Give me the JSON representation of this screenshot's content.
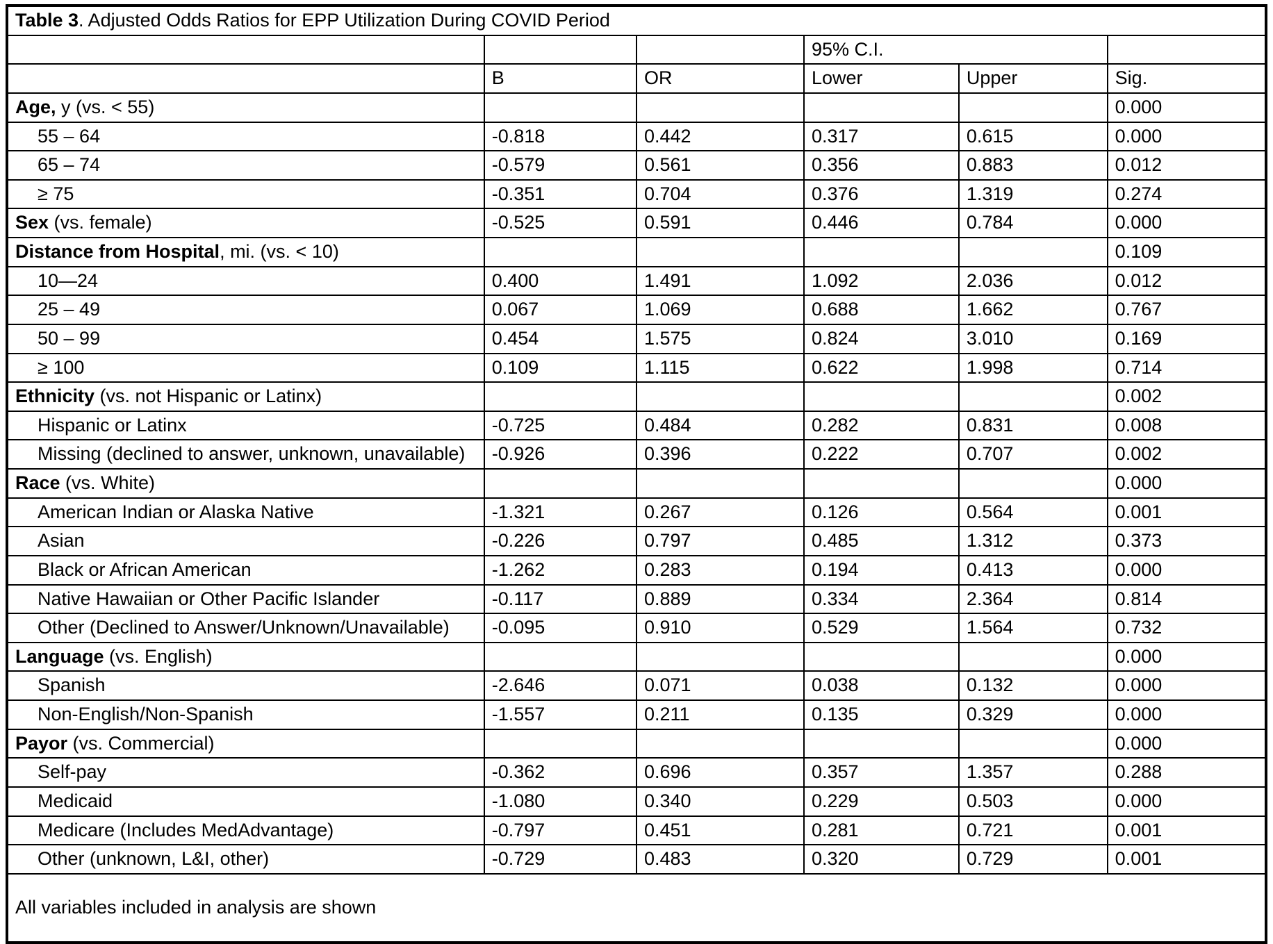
{
  "table": {
    "title_bold": "Table 3",
    "title_rest": ". Adjusted Odds Ratios for EPP Utilization During COVID Period",
    "ci_header": "95% C.I.",
    "columns": [
      "B",
      "OR",
      "Lower",
      "Upper",
      "Sig."
    ],
    "rows": [
      {
        "label_bold": "Age,",
        "label_rest": " y (vs. < 55)",
        "indent": false,
        "b": "",
        "or": "",
        "lower": "",
        "upper": "",
        "sig": "0.000",
        "sig_bold": true
      },
      {
        "label_bold": "",
        "label_rest": "55 – 64",
        "indent": true,
        "b": "-0.818",
        "or": "0.442",
        "lower": "0.317",
        "upper": "0.615",
        "sig": "0.000",
        "sig_bold": true
      },
      {
        "label_bold": "",
        "label_rest": "65 – 74",
        "indent": true,
        "b": "-0.579",
        "or": "0.561",
        "lower": "0.356",
        "upper": "0.883",
        "sig": "0.012",
        "sig_bold": true
      },
      {
        "label_bold": "",
        "label_rest": "≥ 75",
        "indent": true,
        "b": "-0.351",
        "or": "0.704",
        "lower": "0.376",
        "upper": "1.319",
        "sig": "0.274",
        "sig_bold": false
      },
      {
        "label_bold": "Sex",
        "label_rest": " (vs. female)",
        "indent": false,
        "b": "-0.525",
        "or": "0.591",
        "lower": "0.446",
        "upper": "0.784",
        "sig": "0.000",
        "sig_bold": true
      },
      {
        "label_bold": "Distance from Hospital",
        "label_rest": ", mi. (vs. < 10)",
        "indent": false,
        "b": "",
        "or": "",
        "lower": "",
        "upper": "",
        "sig": "0.109",
        "sig_bold": false
      },
      {
        "label_bold": "",
        "label_rest": "10—24",
        "indent": true,
        "b": "0.400",
        "or": "1.491",
        "lower": "1.092",
        "upper": "2.036",
        "sig": "0.012",
        "sig_bold": true
      },
      {
        "label_bold": "",
        "label_rest": "25 – 49",
        "indent": true,
        "b": "0.067",
        "or": "1.069",
        "lower": "0.688",
        "upper": "1.662",
        "sig": "0.767",
        "sig_bold": false
      },
      {
        "label_bold": "",
        "label_rest": "50 – 99",
        "indent": true,
        "b": "0.454",
        "or": "1.575",
        "lower": "0.824",
        "upper": "3.010",
        "sig": "0.169",
        "sig_bold": false
      },
      {
        "label_bold": "",
        "label_rest": "≥ 100",
        "indent": true,
        "b": "0.109",
        "or": "1.115",
        "lower": "0.622",
        "upper": "1.998",
        "sig": "0.714",
        "sig_bold": false
      },
      {
        "label_bold": "Ethnicity",
        "label_rest": " (vs. not Hispanic or Latinx)",
        "indent": false,
        "b": "",
        "or": "",
        "lower": "",
        "upper": "",
        "sig": "0.002",
        "sig_bold": true
      },
      {
        "label_bold": "",
        "label_rest": "Hispanic or Latinx",
        "indent": true,
        "b": "-0.725",
        "or": "0.484",
        "lower": "0.282",
        "upper": "0.831",
        "sig": "0.008",
        "sig_bold": true
      },
      {
        "label_bold": "",
        "label_rest": "Missing (declined to answer, unknown, unavailable)",
        "indent": true,
        "b": "-0.926",
        "or": "0.396",
        "lower": "0.222",
        "upper": "0.707",
        "sig": "0.002",
        "sig_bold": true
      },
      {
        "label_bold": "Race",
        "label_rest": " (vs. White)",
        "indent": false,
        "b": "",
        "or": "",
        "lower": "",
        "upper": "",
        "sig": "0.000",
        "sig_bold": true
      },
      {
        "label_bold": "",
        "label_rest": "American Indian or Alaska Native",
        "indent": true,
        "b": "-1.321",
        "or": "0.267",
        "lower": "0.126",
        "upper": "0.564",
        "sig": "0.001",
        "sig_bold": true
      },
      {
        "label_bold": "",
        "label_rest": "Asian",
        "indent": true,
        "b": "-0.226",
        "or": "0.797",
        "lower": "0.485",
        "upper": "1.312",
        "sig": "0.373",
        "sig_bold": false
      },
      {
        "label_bold": "",
        "label_rest": "Black or African American",
        "indent": true,
        "b": "-1.262",
        "or": "0.283",
        "lower": "0.194",
        "upper": "0.413",
        "sig": "0.000",
        "sig_bold": true
      },
      {
        "label_bold": "",
        "label_rest": "Native Hawaiian or Other Pacific Islander",
        "indent": true,
        "b": "-0.117",
        "or": "0.889",
        "lower": "0.334",
        "upper": "2.364",
        "sig": "0.814",
        "sig_bold": false
      },
      {
        "label_bold": "",
        "label_rest": "Other (Declined to Answer/Unknown/Unavailable)",
        "indent": true,
        "b": "-0.095",
        "or": "0.910",
        "lower": "0.529",
        "upper": "1.564",
        "sig": "0.732",
        "sig_bold": false
      },
      {
        "label_bold": "Language",
        "label_rest": " (vs. English)",
        "indent": false,
        "b": "",
        "or": "",
        "lower": "",
        "upper": "",
        "sig": "0.000",
        "sig_bold": true
      },
      {
        "label_bold": "",
        "label_rest": "Spanish",
        "indent": true,
        "b": "-2.646",
        "or": "0.071",
        "lower": "0.038",
        "upper": "0.132",
        "sig": "0.000",
        "sig_bold": true
      },
      {
        "label_bold": "",
        "label_rest": "Non-English/Non-Spanish",
        "indent": true,
        "b": "-1.557",
        "or": "0.211",
        "lower": "0.135",
        "upper": "0.329",
        "sig": "0.000",
        "sig_bold": true
      },
      {
        "label_bold": "Payor",
        "label_rest": " (vs. Commercial)",
        "indent": false,
        "b": "",
        "or": "",
        "lower": "",
        "upper": "",
        "sig": "0.000",
        "sig_bold": true
      },
      {
        "label_bold": "",
        "label_rest": "Self-pay",
        "indent": true,
        "b": "-0.362",
        "or": "0.696",
        "lower": "0.357",
        "upper": "1.357",
        "sig": "0.288",
        "sig_bold": false
      },
      {
        "label_bold": "",
        "label_rest": "Medicaid",
        "indent": true,
        "b": "-1.080",
        "or": "0.340",
        "lower": "0.229",
        "upper": "0.503",
        "sig": "0.000",
        "sig_bold": true
      },
      {
        "label_bold": "",
        "label_rest": "Medicare (Includes MedAdvantage)",
        "indent": true,
        "b": "-0.797",
        "or": "0.451",
        "lower": "0.281",
        "upper": "0.721",
        "sig": "0.001",
        "sig_bold": true
      },
      {
        "label_bold": "",
        "label_rest": "Other (unknown, L&I, other)",
        "indent": true,
        "b": "-0.729",
        "or": "0.483",
        "lower": "0.320",
        "upper": "0.729",
        "sig": "0.001",
        "sig_bold": true
      }
    ],
    "footer": "All variables included in analysis are shown"
  }
}
